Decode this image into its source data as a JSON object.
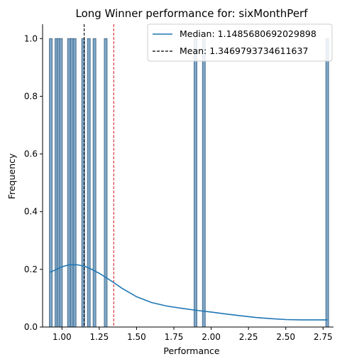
{
  "chart_data": {
    "type": "histogram",
    "title": "Long Winner performance for: sixMonthPerf",
    "xlabel": "Performance",
    "ylabel": "Frequency",
    "xlim": [
      0.87,
      2.82
    ],
    "ylim": [
      0,
      1.05
    ],
    "xticks": [
      1.0,
      1.25,
      1.5,
      1.75,
      2.0,
      2.25,
      2.5,
      2.75
    ],
    "xtick_labels": [
      "1.00",
      "1.25",
      "1.50",
      "1.75",
      "2.00",
      "2.25",
      "2.50",
      "2.75"
    ],
    "yticks": [
      0.0,
      0.2,
      0.4,
      0.6,
      0.8,
      1.0
    ],
    "ytick_labels": [
      "0.0",
      "0.2",
      "0.4",
      "0.6",
      "0.8",
      "1.0"
    ],
    "grid": false,
    "legend_position": "upper-right",
    "bin_width": 0.0185,
    "bars": [
      {
        "x": 0.925,
        "value": 1
      },
      {
        "x": 0.963,
        "value": 1
      },
      {
        "x": 0.977,
        "value": 1
      },
      {
        "x": 0.993,
        "value": 1
      },
      {
        "x": 1.047,
        "value": 1
      },
      {
        "x": 1.066,
        "value": 1
      },
      {
        "x": 1.085,
        "value": 1
      },
      {
        "x": 1.142,
        "value": 1
      },
      {
        "x": 1.18,
        "value": 1
      },
      {
        "x": 1.218,
        "value": 1
      },
      {
        "x": 1.293,
        "value": 1
      },
      {
        "x": 1.895,
        "value": 1
      },
      {
        "x": 1.951,
        "value": 1
      },
      {
        "x": 2.778,
        "value": 1
      }
    ],
    "kde_curve": {
      "x": [
        0.92,
        0.96,
        1.0,
        1.05,
        1.1,
        1.15,
        1.2,
        1.25,
        1.3,
        1.35,
        1.4,
        1.5,
        1.6,
        1.7,
        1.8,
        1.9,
        2.0,
        2.1,
        2.2,
        2.3,
        2.4,
        2.5,
        2.6,
        2.7,
        2.78
      ],
      "y": [
        0.19,
        0.199,
        0.209,
        0.216,
        0.216,
        0.211,
        0.2,
        0.186,
        0.17,
        0.153,
        0.135,
        0.105,
        0.085,
        0.073,
        0.065,
        0.058,
        0.052,
        0.045,
        0.039,
        0.033,
        0.029,
        0.026,
        0.025,
        0.025,
        0.025
      ]
    },
    "reference_lines": [
      {
        "label": "Median: 1.1485680692029898",
        "x": 1.1485680692029898,
        "style": "dashed",
        "color": "#000000"
      },
      {
        "label": "Mean: 1.3469793734611637",
        "x": 1.3469793734611637,
        "style": "dashed",
        "color": "#d62728"
      }
    ],
    "legend": [
      {
        "label": "Median: 1.1485680692029898",
        "style": "solid",
        "color": "#1f77b4"
      },
      {
        "label": "Mean: 1.3469793734611637",
        "style": "dashed",
        "color": "#000000"
      }
    ],
    "colors": {
      "bar_fill": "#7fa8c9",
      "bar_edge": "#4a6f8f",
      "kde": "#1f77b4"
    }
  }
}
